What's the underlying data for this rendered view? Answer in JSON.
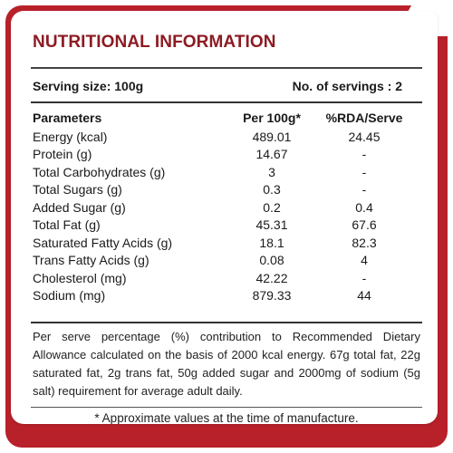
{
  "title": "NUTRITIONAL INFORMATION",
  "serving": {
    "size": "Serving size: 100g",
    "count": "No. of servings : 2"
  },
  "table": {
    "headers": [
      "Parameters",
      "Per 100g*",
      "%RDA/Serve"
    ],
    "rows": [
      [
        "Energy (kcal)",
        "489.01",
        "24.45"
      ],
      [
        "Protein (g)",
        "14.67",
        "-"
      ],
      [
        "Total Carbohydrates (g)",
        "3",
        "-"
      ],
      [
        "Total Sugars (g)",
        "0.3",
        "-"
      ],
      [
        "Added Sugar (g)",
        "0.2",
        "0.4"
      ],
      [
        "Total Fat (g)",
        "45.31",
        "67.6"
      ],
      [
        "Saturated Fatty Acids (g)",
        "18.1",
        "82.3"
      ],
      [
        "Trans Fatty Acids (g)",
        "0.08",
        "4"
      ],
      [
        "Cholesterol (mg)",
        "42.22",
        "-"
      ],
      [
        "Sodium (mg)",
        "879.33",
        "44"
      ]
    ]
  },
  "note": "Per serve percentage (%) contribution to Recommended Dietary Allowance calculated on the basis of 2000 kcal energy. 67g total fat, 22g saturated fat, 2g trans fat, 50g added sugar and 2000mg of sodium (5g salt) requirement for average adult daily.",
  "footnote": "* Approximate values at the time of manufacture.",
  "colors": {
    "accent": "#b8202a",
    "title": "#8d1b23"
  }
}
